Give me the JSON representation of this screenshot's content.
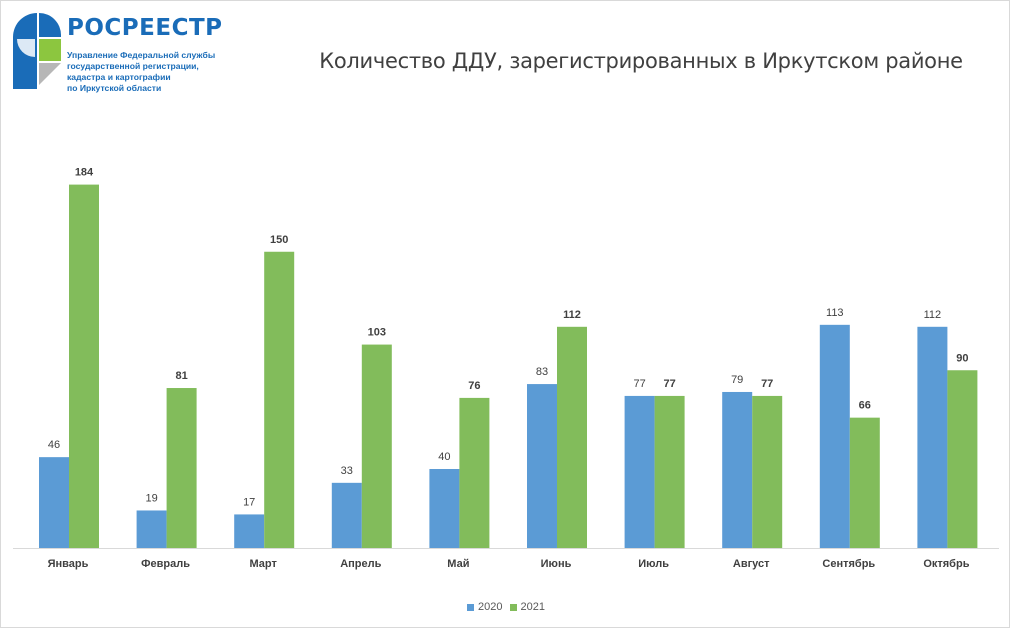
{
  "brand": {
    "name": "РОСРЕЕСТР",
    "subtitle_lines": [
      "Управление Федеральной службы",
      "государственной регистрации,",
      "кадастра и картографии",
      "по Иркутской области"
    ],
    "colors": {
      "blue": "#1a6cb8",
      "green": "#8cc63f",
      "grey": "#b7b7b7"
    }
  },
  "chart_data": {
    "type": "bar",
    "title": "Количество ДДУ, зарегистрированных в Иркутском районе",
    "xlabel": "",
    "ylabel": "",
    "ylim": [
      0,
      200
    ],
    "grid": false,
    "legend_position": "bottom",
    "categories": [
      "Январь",
      "Февраль",
      "Март",
      "Апрель",
      "Май",
      "Июнь",
      "Июль",
      "Август",
      "Сентябрь",
      "Октябрь"
    ],
    "series": [
      {
        "name": "2020",
        "color": "#5b9bd5",
        "label_bold": false,
        "values": [
          46,
          19,
          17,
          33,
          40,
          83,
          77,
          79,
          113,
          112
        ]
      },
      {
        "name": "2021",
        "color": "#82bc5b",
        "label_bold": true,
        "values": [
          184,
          81,
          150,
          103,
          76,
          112,
          77,
          77,
          66,
          90
        ]
      }
    ]
  }
}
